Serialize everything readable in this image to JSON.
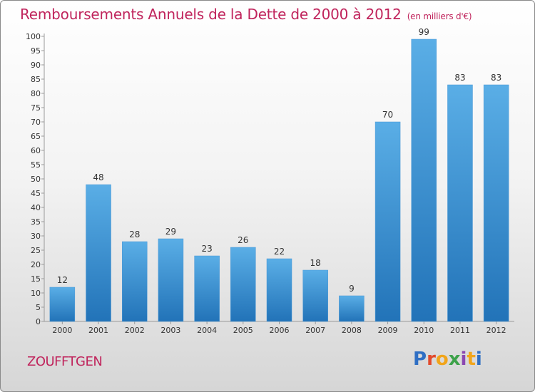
{
  "header": {
    "title": "Remboursements Annuels de la Dette de 2000 à 2012",
    "unit": "(en milliers d'€)"
  },
  "footer": {
    "commune": "ZOUFFTGEN",
    "logo": "Proxiti"
  },
  "colors": {
    "title": "#c0245c",
    "bar_top": "#5aaee6",
    "bar_bottom": "#2273b8"
  },
  "chart_data": {
    "type": "bar",
    "title": "Remboursements Annuels de la Dette de 2000 à 2012",
    "subtitle": "(en milliers d'€)",
    "categories": [
      "2000",
      "2001",
      "2002",
      "2003",
      "2004",
      "2005",
      "2006",
      "2007",
      "2008",
      "2009",
      "2010",
      "2011",
      "2012"
    ],
    "values": [
      12,
      48,
      28,
      29,
      23,
      26,
      22,
      18,
      9,
      70,
      99,
      83,
      83
    ],
    "ylim": [
      0,
      100
    ],
    "ytick_step": 5,
    "grid": false,
    "data_labels": true
  }
}
